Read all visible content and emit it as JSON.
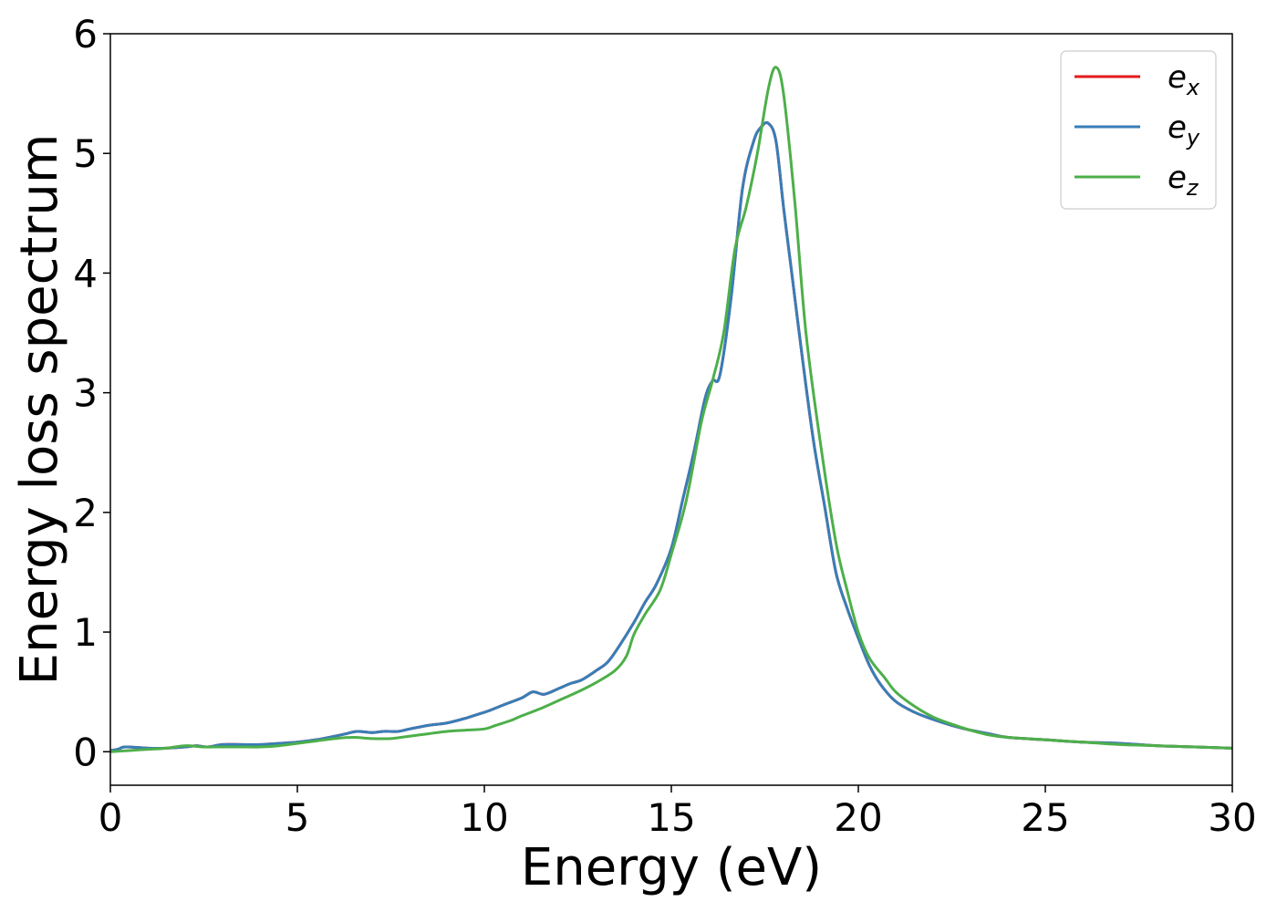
{
  "chart_data": {
    "type": "line",
    "title": "",
    "xlabel": "Energy (eV)",
    "ylabel": "Energy loss spectrum",
    "xlim": [
      0,
      30
    ],
    "ylim": [
      -0.28,
      6
    ],
    "xticks": [
      0,
      5,
      10,
      15,
      20,
      25,
      30
    ],
    "yticks": [
      0,
      1,
      2,
      3,
      4,
      5,
      6
    ],
    "grid": false,
    "legend_position": "top-right",
    "series": [
      {
        "name": "x",
        "color": "#e41a1c",
        "x": [
          0,
          0.2,
          0.4,
          1.0,
          1.5,
          2.0,
          2.3,
          2.6,
          3.0,
          3.5,
          4.0,
          4.5,
          5.0,
          5.5,
          6.0,
          6.3,
          6.6,
          7.0,
          7.3,
          7.7,
          8.0,
          8.5,
          9.0,
          9.5,
          9.9,
          10.1,
          10.5,
          11.0,
          11.3,
          11.6,
          12.0,
          12.3,
          12.6,
          13.0,
          13.3,
          13.6,
          14.0,
          14.3,
          14.6,
          15.0,
          15.3,
          15.6,
          15.9,
          16.1,
          16.3,
          16.6,
          16.9,
          17.2,
          17.4,
          17.6,
          17.8,
          18.0,
          18.2,
          18.5,
          18.8,
          19.1,
          19.4,
          19.7,
          20.0,
          20.3,
          20.6,
          21.0,
          21.5,
          22.0,
          22.5,
          23.0,
          23.5,
          24.0,
          25.0,
          26.0,
          27.0,
          28.0,
          29.0,
          30.0
        ],
        "values": [
          0.01,
          0.02,
          0.04,
          0.03,
          0.03,
          0.04,
          0.05,
          0.04,
          0.06,
          0.06,
          0.06,
          0.07,
          0.08,
          0.1,
          0.13,
          0.15,
          0.17,
          0.16,
          0.17,
          0.17,
          0.19,
          0.22,
          0.24,
          0.28,
          0.32,
          0.34,
          0.39,
          0.45,
          0.5,
          0.48,
          0.53,
          0.57,
          0.6,
          0.68,
          0.75,
          0.88,
          1.08,
          1.25,
          1.4,
          1.7,
          2.1,
          2.5,
          2.95,
          3.1,
          3.15,
          3.8,
          4.7,
          5.1,
          5.22,
          5.25,
          5.1,
          4.55,
          4.05,
          3.3,
          2.6,
          2.05,
          1.5,
          1.2,
          0.95,
          0.72,
          0.56,
          0.42,
          0.33,
          0.27,
          0.22,
          0.18,
          0.15,
          0.12,
          0.1,
          0.08,
          0.07,
          0.05,
          0.04,
          0.03
        ]
      },
      {
        "name": "y",
        "color": "#377eb8",
        "x": [
          0,
          0.2,
          0.4,
          1.0,
          1.5,
          2.0,
          2.3,
          2.6,
          3.0,
          3.5,
          4.0,
          4.5,
          5.0,
          5.5,
          6.0,
          6.3,
          6.6,
          7.0,
          7.3,
          7.7,
          8.0,
          8.5,
          9.0,
          9.5,
          9.9,
          10.1,
          10.5,
          11.0,
          11.3,
          11.6,
          12.0,
          12.3,
          12.6,
          13.0,
          13.3,
          13.6,
          14.0,
          14.3,
          14.6,
          15.0,
          15.3,
          15.6,
          15.9,
          16.1,
          16.3,
          16.6,
          16.9,
          17.2,
          17.4,
          17.6,
          17.8,
          18.0,
          18.2,
          18.5,
          18.8,
          19.1,
          19.4,
          19.7,
          20.0,
          20.3,
          20.6,
          21.0,
          21.5,
          22.0,
          22.5,
          23.0,
          23.5,
          24.0,
          25.0,
          26.0,
          27.0,
          28.0,
          29.0,
          30.0
        ],
        "values": [
          0.01,
          0.02,
          0.04,
          0.03,
          0.03,
          0.04,
          0.05,
          0.04,
          0.06,
          0.06,
          0.06,
          0.07,
          0.08,
          0.1,
          0.13,
          0.15,
          0.17,
          0.16,
          0.17,
          0.17,
          0.19,
          0.22,
          0.24,
          0.28,
          0.32,
          0.34,
          0.39,
          0.45,
          0.5,
          0.48,
          0.53,
          0.57,
          0.6,
          0.68,
          0.75,
          0.88,
          1.08,
          1.25,
          1.4,
          1.7,
          2.1,
          2.5,
          2.95,
          3.1,
          3.15,
          3.8,
          4.7,
          5.1,
          5.22,
          5.25,
          5.1,
          4.55,
          4.05,
          3.3,
          2.6,
          2.05,
          1.5,
          1.2,
          0.95,
          0.72,
          0.56,
          0.42,
          0.33,
          0.27,
          0.22,
          0.18,
          0.15,
          0.12,
          0.1,
          0.08,
          0.07,
          0.05,
          0.04,
          0.03
        ]
      },
      {
        "name": "z",
        "color": "#4daf4a",
        "x": [
          0,
          0.5,
          1.0,
          1.5,
          2.0,
          2.5,
          3.0,
          3.5,
          4.0,
          4.5,
          5.0,
          5.5,
          6.0,
          6.5,
          7.0,
          7.5,
          8.0,
          8.5,
          9.0,
          9.5,
          10.0,
          10.3,
          10.7,
          11.0,
          11.5,
          12.0,
          12.5,
          13.0,
          13.5,
          13.8,
          14.0,
          14.3,
          14.7,
          15.0,
          15.4,
          15.8,
          16.1,
          16.4,
          16.7,
          17.0,
          17.3,
          17.6,
          17.8,
          18.0,
          18.3,
          18.6,
          19.0,
          19.4,
          19.7,
          20.0,
          20.3,
          20.7,
          21.0,
          21.5,
          22.0,
          22.5,
          23.0,
          23.5,
          24.0,
          25.0,
          26.0,
          27.0,
          28.0,
          29.0,
          30.0
        ],
        "values": [
          0.0,
          0.01,
          0.02,
          0.03,
          0.05,
          0.04,
          0.04,
          0.04,
          0.04,
          0.05,
          0.07,
          0.09,
          0.11,
          0.12,
          0.11,
          0.11,
          0.13,
          0.15,
          0.17,
          0.18,
          0.19,
          0.22,
          0.26,
          0.3,
          0.36,
          0.43,
          0.5,
          0.58,
          0.68,
          0.8,
          0.98,
          1.15,
          1.35,
          1.65,
          2.1,
          2.75,
          3.1,
          3.5,
          4.2,
          4.55,
          5.0,
          5.55,
          5.72,
          5.5,
          4.6,
          3.5,
          2.55,
          1.75,
          1.35,
          1.0,
          0.78,
          0.62,
          0.5,
          0.38,
          0.29,
          0.23,
          0.18,
          0.14,
          0.12,
          0.1,
          0.08,
          0.06,
          0.05,
          0.04,
          0.03
        ]
      }
    ]
  },
  "legend": {
    "entries": [
      {
        "base": "e",
        "sub": "x",
        "color": "#e41a1c"
      },
      {
        "base": "e",
        "sub": "y",
        "color": "#377eb8"
      },
      {
        "base": "e",
        "sub": "z",
        "color": "#4daf4a"
      }
    ]
  }
}
